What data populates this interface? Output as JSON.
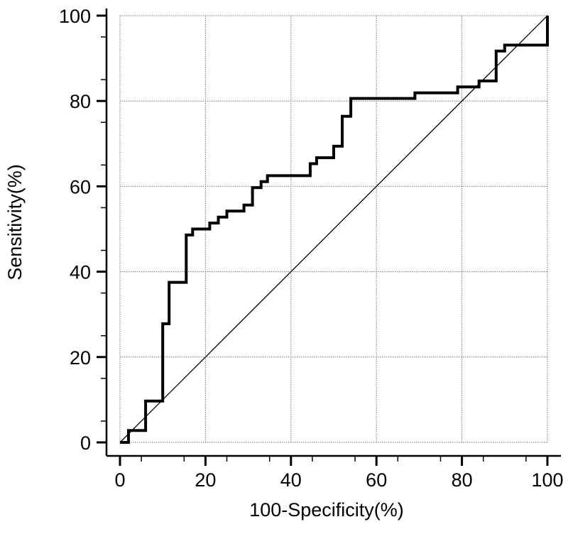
{
  "chart_data": {
    "type": "line",
    "xlabel": "100-Specificity(%)",
    "ylabel": "Sensitivity(%)",
    "xlim": [
      0,
      100
    ],
    "ylim": [
      0,
      100
    ],
    "xticks": [
      "0",
      "20",
      "40",
      "60",
      "80",
      "100"
    ],
    "yticks": [
      "0",
      "20",
      "40",
      "60",
      "80",
      "100"
    ],
    "grid": true,
    "series": [
      {
        "style": "step",
        "color": "#000000",
        "points": [
          [
            0,
            0
          ],
          [
            2,
            0
          ],
          [
            2,
            2.8
          ],
          [
            6,
            2.8
          ],
          [
            6,
            9.7
          ],
          [
            10,
            9.7
          ],
          [
            10,
            27.8
          ],
          [
            11.5,
            27.8
          ],
          [
            11.5,
            37.5
          ],
          [
            15.5,
            37.5
          ],
          [
            15.5,
            48.6
          ],
          [
            17,
            48.6
          ],
          [
            17,
            50
          ],
          [
            21,
            50
          ],
          [
            21,
            51.4
          ],
          [
            23,
            51.4
          ],
          [
            23,
            52.8
          ],
          [
            25,
            52.8
          ],
          [
            25,
            54.2
          ],
          [
            29,
            54.2
          ],
          [
            29,
            55.6
          ],
          [
            31,
            55.6
          ],
          [
            31,
            59.7
          ],
          [
            33,
            59.7
          ],
          [
            33,
            61.1
          ],
          [
            34.5,
            61.1
          ],
          [
            34.5,
            62.5
          ],
          [
            44.5,
            62.5
          ],
          [
            44.5,
            65.3
          ],
          [
            46,
            65.3
          ],
          [
            46,
            66.7
          ],
          [
            50,
            66.7
          ],
          [
            50,
            69.4
          ],
          [
            52,
            69.4
          ],
          [
            52,
            76.4
          ],
          [
            54,
            76.4
          ],
          [
            54,
            80.6
          ],
          [
            69,
            80.6
          ],
          [
            69,
            81.9
          ],
          [
            79,
            81.9
          ],
          [
            79,
            83.3
          ],
          [
            84,
            83.3
          ],
          [
            84,
            84.7
          ],
          [
            88,
            84.7
          ],
          [
            88,
            91.7
          ],
          [
            90,
            91.7
          ],
          [
            90,
            93.1
          ],
          [
            100,
            93.1
          ],
          [
            100,
            100
          ]
        ]
      },
      {
        "style": "reference-diagonal",
        "color": "#000000",
        "points": [
          [
            0,
            0
          ],
          [
            100,
            100
          ]
        ]
      }
    ]
  }
}
